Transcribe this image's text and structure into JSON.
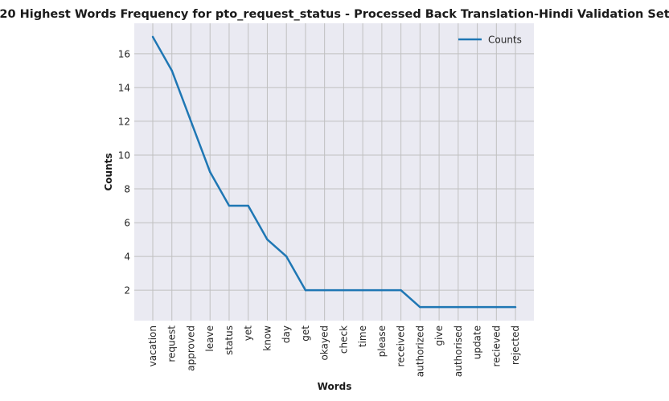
{
  "chart_data": {
    "type": "line",
    "title": "20 Highest Words Frequency for pto_request_status - Processed Back Translation-Hindi Validation Set",
    "xlabel": "Words",
    "ylabel": "Counts",
    "categories": [
      "vacation",
      "request",
      "approved",
      "leave",
      "status",
      "yet",
      "know",
      "day",
      "get",
      "okayed",
      "check",
      "time",
      "please",
      "received",
      "authorized",
      "give",
      "authorised",
      "update",
      "recieved",
      "rejected"
    ],
    "series": [
      {
        "name": "Counts",
        "values": [
          17,
          15,
          12,
          9,
          7,
          7,
          5,
          4,
          2,
          2,
          2,
          2,
          2,
          2,
          1,
          1,
          1,
          1,
          1,
          1
        ]
      }
    ],
    "yticks": [
      2,
      4,
      6,
      8,
      10,
      12,
      14,
      16
    ],
    "ylim": [
      0.2,
      17.8
    ],
    "grid": true,
    "legend_position": "top-right",
    "colors": {
      "line": "#1f77b4",
      "plot_bg": "#eaeaf2",
      "grid": "#c0c0c0"
    }
  }
}
